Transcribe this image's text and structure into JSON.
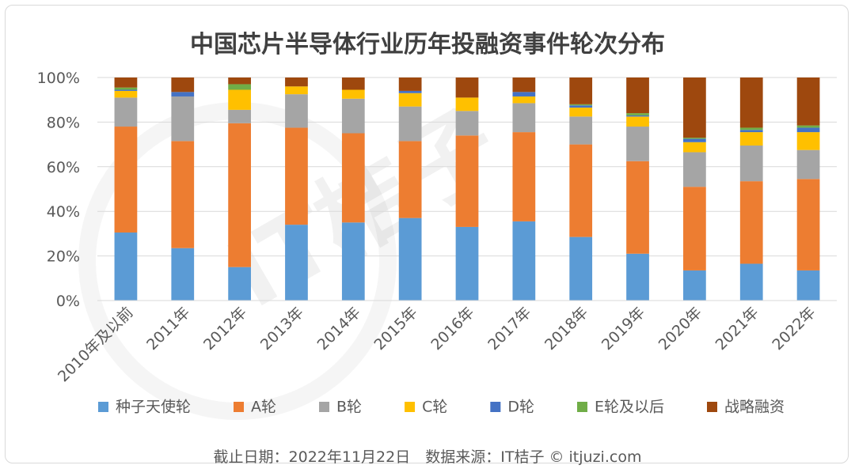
{
  "chart_data": {
    "type": "bar",
    "stacked": true,
    "title": "中国芯片半导体行业历年投融资事件轮次分布",
    "categories": [
      "2010年及以前",
      "2011年",
      "2012年",
      "2013年",
      "2014年",
      "2015年",
      "2016年",
      "2017年",
      "2018年",
      "2019年",
      "2020年",
      "2021年",
      "2022年"
    ],
    "y_ticks": [
      "0%",
      "20%",
      "40%",
      "60%",
      "80%",
      "100%"
    ],
    "ylim": [
      0,
      100
    ],
    "grid": true,
    "legend_position": "bottom",
    "series": [
      {
        "name": "种子天使轮",
        "color": "#5B9BD5",
        "values": [
          30.5,
          23.5,
          15,
          34,
          35,
          37,
          33,
          35.5,
          28.5,
          21,
          13.5,
          16.5,
          13.5
        ]
      },
      {
        "name": "A轮",
        "color": "#ED7D31",
        "values": [
          47.5,
          48,
          64.5,
          43.5,
          40,
          34.5,
          41,
          40,
          41.5,
          41.5,
          37.5,
          37,
          41
        ]
      },
      {
        "name": "B轮",
        "color": "#A5A5A5",
        "values": [
          13,
          20,
          6,
          15,
          15.5,
          15.5,
          11,
          13,
          12.5,
          15.5,
          15.5,
          16,
          13
        ]
      },
      {
        "name": "C轮",
        "color": "#FFC000",
        "values": [
          3,
          0,
          9,
          3.5,
          4,
          6,
          6,
          3,
          4,
          4.5,
          4.5,
          6,
          8
        ]
      },
      {
        "name": "D轮",
        "color": "#4472C4",
        "values": [
          0.5,
          2,
          0,
          0,
          0,
          1,
          0,
          2,
          1,
          0.5,
          1.5,
          1,
          2
        ]
      },
      {
        "name": "E轮及以后",
        "color": "#70AD47",
        "values": [
          1,
          0,
          2.5,
          0,
          0,
          0,
          0,
          0,
          0.5,
          1,
          0.5,
          1,
          1
        ]
      },
      {
        "name": "战略融资",
        "color": "#9E480E",
        "values": [
          4.5,
          6.5,
          3,
          4,
          5.5,
          6,
          9,
          6.5,
          12,
          16,
          27,
          22.5,
          21.5
        ]
      }
    ]
  },
  "footnote": "截止日期：2022年11月22日　数据来源：IT桔子 © itjuzi.com",
  "watermark": "IT桔子"
}
